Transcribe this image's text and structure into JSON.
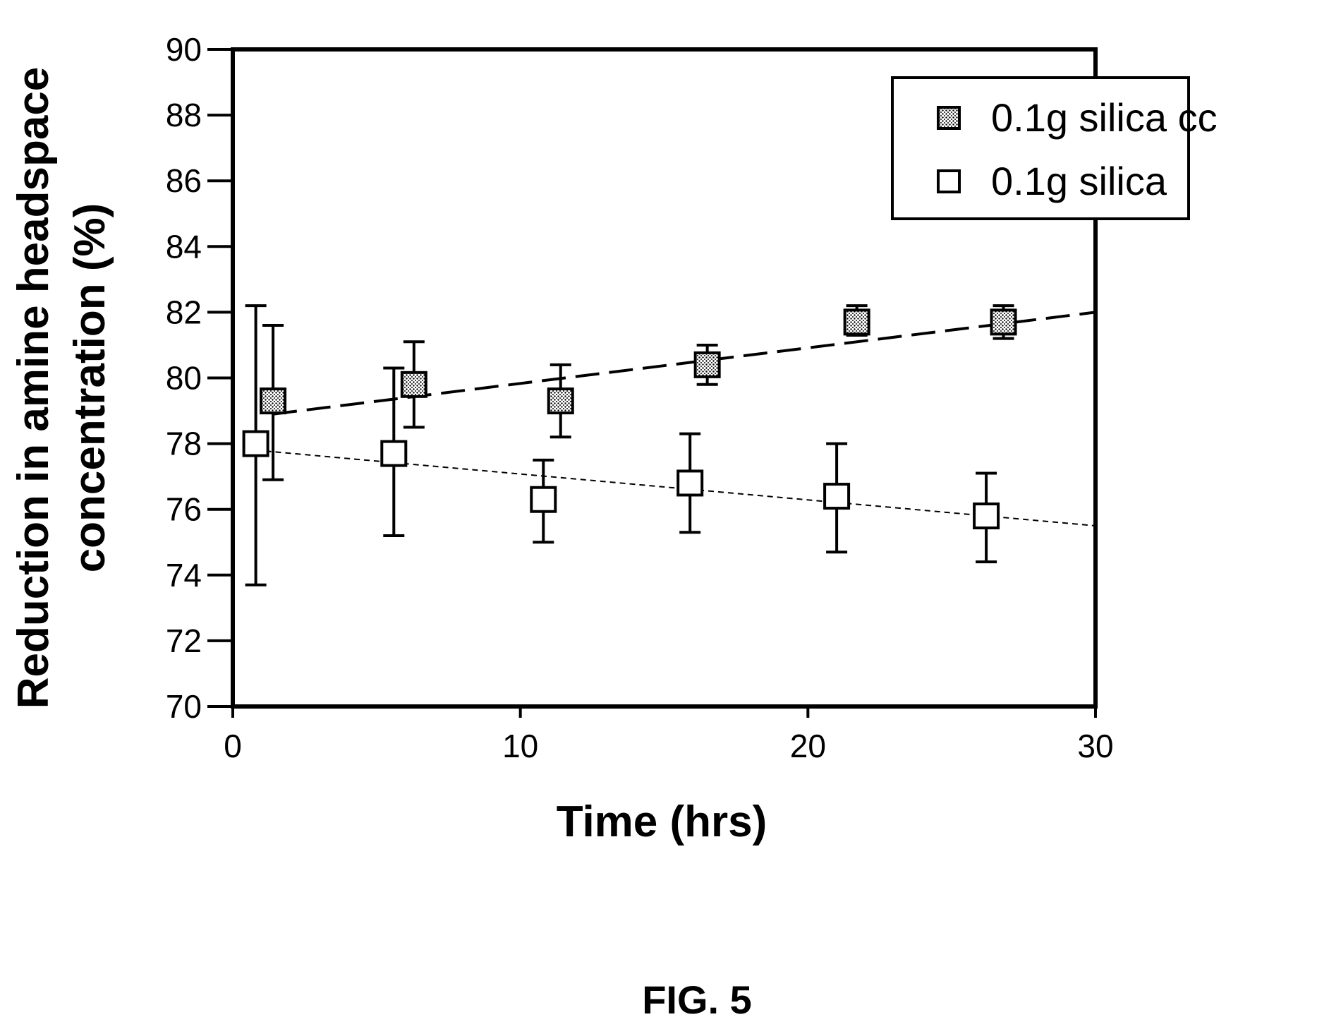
{
  "chart_data": {
    "type": "scatter",
    "xlabel": "Time (hrs)",
    "ylabel_lines": [
      "Reduction in amine headspace",
      "concentration (%)"
    ],
    "xlim": [
      0,
      30
    ],
    "ylim": [
      70,
      90
    ],
    "xticks": [
      0,
      10,
      20,
      30
    ],
    "yticks": [
      70,
      72,
      74,
      76,
      78,
      80,
      82,
      84,
      86,
      88,
      90
    ],
    "grid": false,
    "legend_position": "top-right",
    "series": [
      {
        "name": "0.1g silica cc",
        "marker": "square-hatched",
        "x": [
          1.4,
          6.3,
          11.4,
          16.5,
          21.7,
          26.8
        ],
        "y": [
          79.3,
          79.8,
          79.3,
          80.4,
          81.7,
          81.7
        ],
        "err_low": [
          76.9,
          78.5,
          78.2,
          79.8,
          81.3,
          81.2
        ],
        "err_high": [
          81.6,
          81.1,
          80.4,
          81.0,
          82.2,
          82.2
        ],
        "trend": {
          "style": "long-dash",
          "x": [
            1.4,
            30
          ],
          "y": [
            78.9,
            82.0
          ]
        }
      },
      {
        "name": "0.1g silica",
        "marker": "square-open",
        "x": [
          0.8,
          5.6,
          10.8,
          15.9,
          21.0,
          26.2
        ],
        "y": [
          78.0,
          77.7,
          76.3,
          76.8,
          76.4,
          75.8
        ],
        "err_low": [
          73.7,
          75.2,
          75.0,
          75.3,
          74.7,
          74.4
        ],
        "err_high": [
          82.2,
          80.3,
          77.5,
          78.3,
          78.0,
          77.1
        ],
        "trend": {
          "style": "short-dash",
          "x": [
            0.8,
            30
          ],
          "y": [
            77.8,
            75.5
          ]
        }
      }
    ],
    "caption": "FIG. 5"
  }
}
